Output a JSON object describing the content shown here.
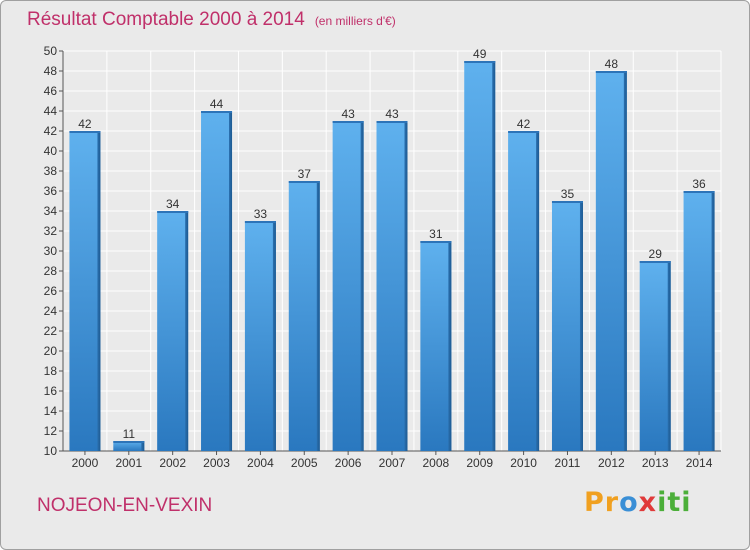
{
  "chart_data": {
    "type": "bar",
    "title": "Résultat Comptable 2000 à 2014",
    "unit": "(en milliers d'€)",
    "categories": [
      "2000",
      "2001",
      "2002",
      "2003",
      "2004",
      "2005",
      "2006",
      "2007",
      "2008",
      "2009",
      "2010",
      "2011",
      "2012",
      "2013",
      "2014"
    ],
    "values": [
      42,
      11,
      34,
      44,
      33,
      37,
      43,
      43,
      31,
      49,
      42,
      35,
      48,
      29,
      36
    ],
    "ylim": [
      10,
      50
    ],
    "ytick_step": 2,
    "grid": true,
    "xlabel": "",
    "ylabel": "",
    "bar_color": "#4a9fe0"
  },
  "footer": {
    "commune": "NOJEON-EN-VEXIN",
    "logo_parts": [
      "Pr",
      "o",
      "x",
      "iti"
    ]
  }
}
